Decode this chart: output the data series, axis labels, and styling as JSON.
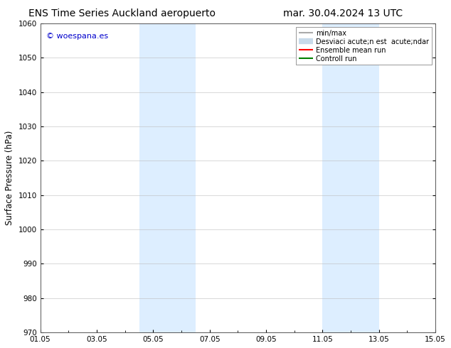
{
  "title_left": "ENS Time Series Auckland aeropuerto",
  "title_right": "mar. 30.04.2024 13 UTC",
  "ylabel": "Surface Pressure (hPa)",
  "ylim": [
    970,
    1060
  ],
  "yticks": [
    970,
    980,
    990,
    1000,
    1010,
    1020,
    1030,
    1040,
    1050,
    1060
  ],
  "xlim_start": 0,
  "xlim_end": 14,
  "xtick_labels": [
    "01.05",
    "03.05",
    "05.05",
    "07.05",
    "09.05",
    "11.05",
    "13.05",
    "15.05"
  ],
  "xtick_positions": [
    0,
    2,
    4,
    6,
    8,
    10,
    12,
    14
  ],
  "watermark": "© woespana.es",
  "watermark_color": "#0000cc",
  "shaded_regions": [
    {
      "xmin": 3.5,
      "xmax": 5.5
    },
    {
      "xmin": 10.0,
      "xmax": 12.0
    }
  ],
  "shaded_color": "#ddeeff",
  "background_color": "#ffffff",
  "legend_entries": [
    {
      "label": "min/max",
      "color": "#aaaaaa",
      "lw": 1.5,
      "style": "line"
    },
    {
      "label": "Desviaci acute;n est  acute;ndar",
      "color": "#c8daea",
      "lw": 6,
      "style": "line"
    },
    {
      "label": "Ensemble mean run",
      "color": "#ff0000",
      "lw": 1.5,
      "style": "line"
    },
    {
      "label": "Controll run",
      "color": "#008000",
      "lw": 1.5,
      "style": "line"
    }
  ],
  "title_fontsize": 10,
  "tick_fontsize": 7.5,
  "ylabel_fontsize": 8.5,
  "legend_fontsize": 7,
  "watermark_fontsize": 8
}
